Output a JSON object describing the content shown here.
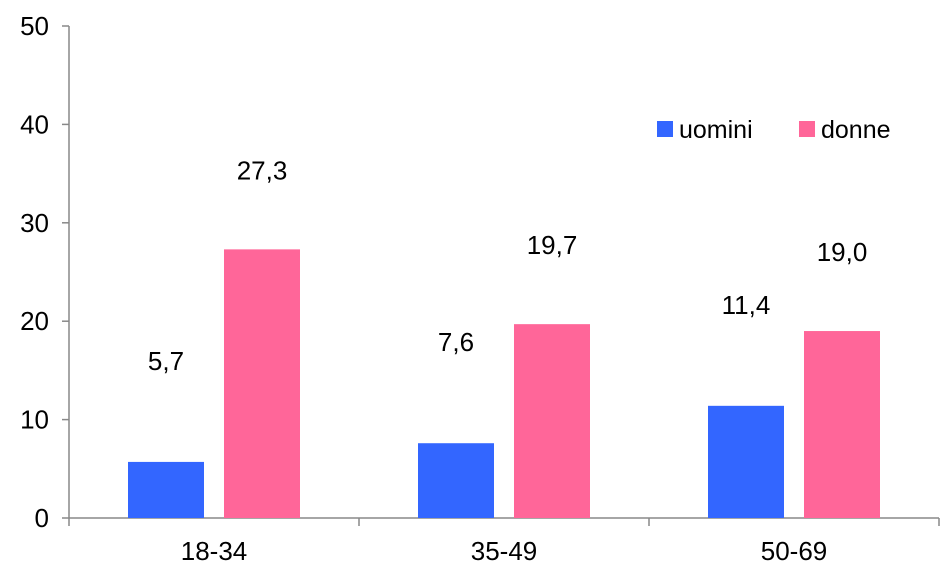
{
  "chart_data": {
    "type": "bar",
    "categories": [
      "18-34",
      "35-49",
      "50-69"
    ],
    "series": [
      {
        "name": "uomini",
        "values": [
          5.7,
          7.6,
          11.4
        ],
        "labels": [
          "5,7",
          "7,6",
          "11,4"
        ],
        "color": "#3366ff"
      },
      {
        "name": "donne",
        "values": [
          27.3,
          19.7,
          19.0
        ],
        "labels": [
          "27,3",
          "19,7",
          "19,0"
        ],
        "color": "#ff6699"
      }
    ],
    "yticks": [
      0,
      10,
      20,
      30,
      40,
      50
    ],
    "ylim": [
      0,
      50
    ],
    "title": "",
    "xlabel": "",
    "ylabel": "",
    "legend_position": "top-right",
    "grid": false
  }
}
